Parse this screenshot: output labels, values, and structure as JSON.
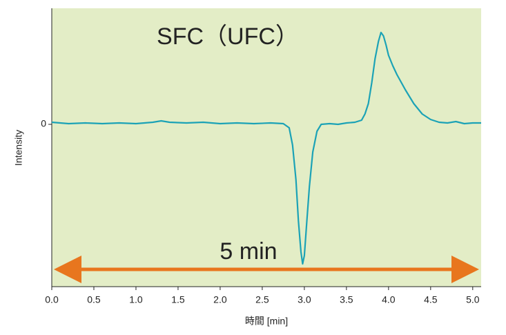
{
  "chart_data": {
    "type": "line",
    "title": "SFC（UFC）",
    "annotation": "5 min",
    "xlabel": "時間 [min]",
    "ylabel": "Intensity",
    "color": "#1ba2b6",
    "background": "#e3edc6",
    "arrow_color": "#e8761e",
    "x": [
      0,
      0.2,
      0.4,
      0.6,
      0.8,
      1.0,
      1.2,
      1.3,
      1.4,
      1.6,
      1.8,
      2.0,
      2.2,
      2.4,
      2.6,
      2.75,
      2.82,
      2.86,
      2.9,
      2.93,
      2.96,
      2.98,
      3.0,
      3.03,
      3.06,
      3.1,
      3.15,
      3.2,
      3.3,
      3.4,
      3.5,
      3.6,
      3.68,
      3.72,
      3.76,
      3.8,
      3.84,
      3.88,
      3.91,
      3.94,
      3.97,
      4.0,
      4.05,
      4.1,
      4.2,
      4.3,
      4.4,
      4.5,
      4.6,
      4.7,
      4.8,
      4.9,
      5.0,
      5.1
    ],
    "values": [
      3,
      1,
      2,
      1,
      2,
      1,
      3,
      5,
      3,
      2,
      3,
      1,
      2,
      1,
      2,
      1,
      -5,
      -30,
      -80,
      -140,
      -185,
      -202,
      -190,
      -140,
      -90,
      -40,
      -10,
      0,
      1,
      0,
      2,
      3,
      6,
      15,
      30,
      60,
      95,
      120,
      133,
      128,
      115,
      100,
      85,
      72,
      50,
      30,
      15,
      7,
      3,
      2,
      4,
      1,
      2,
      2
    ],
    "xlim": [
      0,
      5.1
    ],
    "ylim": [
      -235,
      168
    ],
    "xticks": [
      {
        "value": 0,
        "label": "0.0"
      },
      0.5,
      {
        "value": 1,
        "label": "1.0"
      },
      1.5,
      {
        "value": 2,
        "label": "2.0"
      },
      2.5,
      {
        "value": 3,
        "label": "3.0"
      },
      3.5,
      {
        "value": 4,
        "label": "4.0"
      },
      4.5,
      {
        "value": 5,
        "label": "5.0"
      }
    ],
    "yticks": [
      0
    ]
  }
}
